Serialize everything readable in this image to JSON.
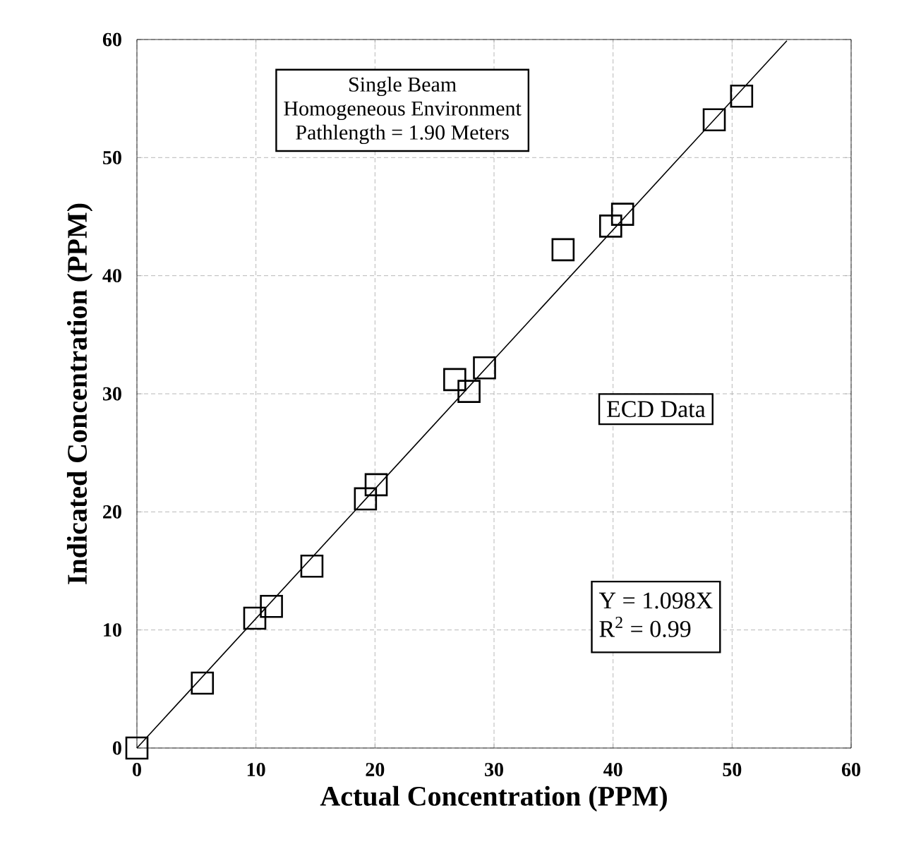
{
  "chart_data": {
    "type": "scatter",
    "xlabel": "Actual Concentration (PPM)",
    "ylabel": "Indicated Concentration (PPM)",
    "annotations": [
      "Single Beam",
      "Homogeneous Environment",
      "Pathlength = 1.90 Meters",
      "ECD Data",
      "Y = 1.098X",
      "R$^{2}$ = 0.99"
    ],
    "series": [
      {
        "color": "#000000",
        "marker": "square",
        "x": [
          0,
          5.5,
          9.9,
          11.3,
          14.7,
          19.2,
          20.1,
          26.7,
          27.9,
          29.2,
          35.8,
          39.8,
          40.8,
          48.5,
          50.8
        ],
        "values": [
          0,
          5.5,
          11.0,
          12.0,
          15.4,
          21.1,
          22.3,
          31.2,
          30.2,
          32.2,
          42.2,
          44.2,
          45.2,
          53.2,
          55.2
        ]
      },
      {
        "type": "line",
        "color": "#000000",
        "marker": "none",
        "line_style": "solid",
        "x": [
          0,
          54.6
        ],
        "values": [
          0,
          59.9
        ]
      }
    ],
    "xlim": [
      0,
      60
    ],
    "ylim": [
      0,
      60
    ],
    "xticks": [
      0,
      10,
      20,
      30,
      40,
      50,
      60
    ],
    "yticks": [
      0,
      10,
      20,
      30,
      40,
      50,
      60
    ],
    "grid": true
  }
}
